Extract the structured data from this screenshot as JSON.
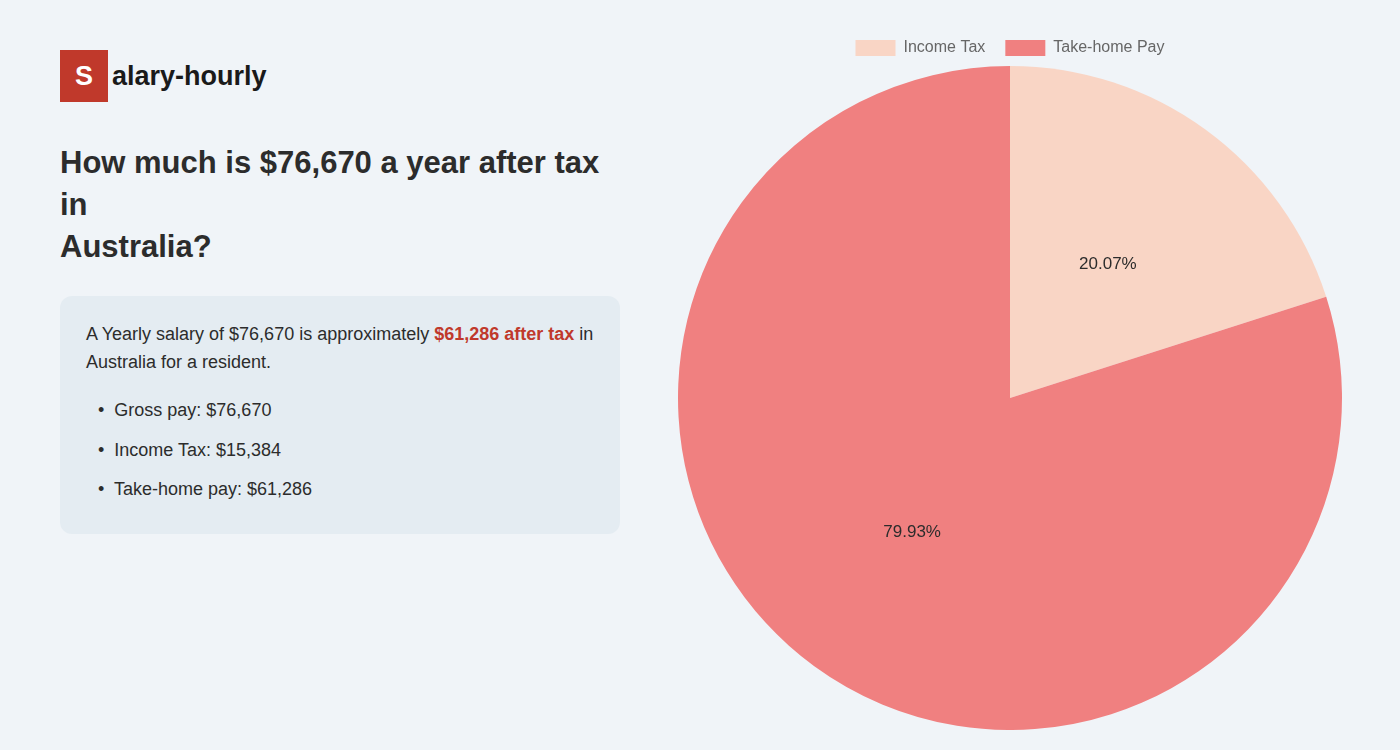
{
  "chart_data": {
    "type": "pie",
    "title": [
      "How much is $76,670 a year after tax in",
      "Australia?"
    ],
    "categories": [
      "Income Tax",
      "Take-home Pay"
    ],
    "values": [
      20.07,
      79.93
    ],
    "value_labels": [
      "20.07%",
      "79.93%"
    ],
    "data_labels": true,
    "colors": [
      "#f9d5c5",
      "#f08080"
    ],
    "legend": "top",
    "annotations": [
      [
        {
          "text": "S",
          "color": "#ffffff",
          "background": "#c0392b"
        },
        {
          "text": "alary-hourly"
        }
      ],
      [
        {
          "text": "A Yearly salary of $76,670 is approximately "
        },
        {
          "text": "$61,286 after tax",
          "color": "#c0392b"
        },
        {
          "text": " in"
        }
      ],
      [
        {
          "text": "Australia for a resident."
        }
      ],
      [
        {
          "text": "•  Gross pay: $76,670"
        }
      ],
      [
        {
          "text": "•  Income Tax: $15,384"
        }
      ],
      [
        {
          "text": "•  Take-home pay: $61,286"
        }
      ]
    ]
  }
}
